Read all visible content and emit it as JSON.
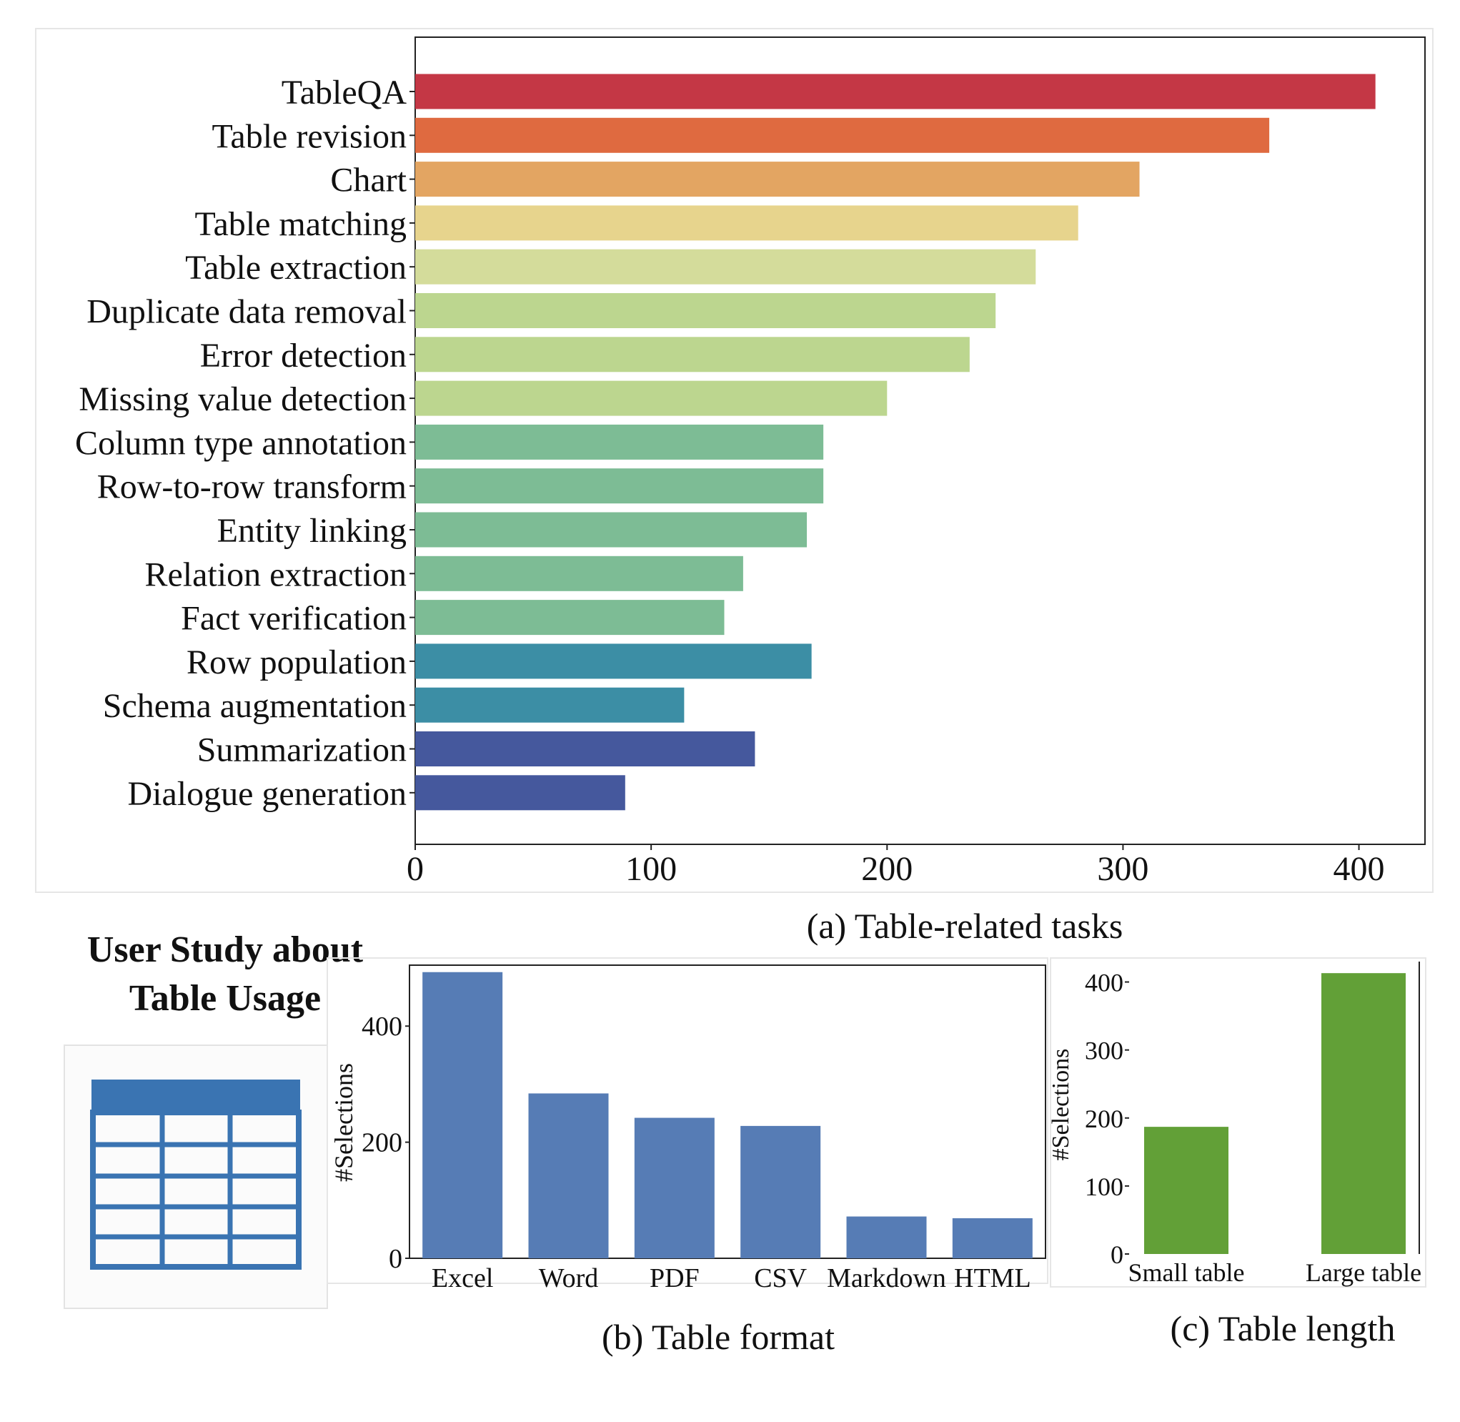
{
  "user_study": {
    "title_line1": "User Study about",
    "title_line2": "Table Usage",
    "icon": "table-grid-icon"
  },
  "chart_data": [
    {
      "id": "a",
      "type": "bar",
      "orientation": "horizontal",
      "caption": "(a) Table-related tasks",
      "xlabel": "",
      "ylabel": "",
      "xlim": [
        0,
        428
      ],
      "xticks": [
        0,
        100,
        200,
        300,
        400
      ],
      "grid": false,
      "categories": [
        "TableQA",
        "Table revision",
        "Chart",
        "Table matching",
        "Table extraction",
        "Duplicate data removal",
        "Error detection",
        "Missing value detection",
        "Column type annotation",
        "Row-to-row transform",
        "Entity linking",
        "Relation extraction",
        "Fact verification",
        "Row population",
        "Schema augmentation",
        "Summarization",
        "Dialogue generation"
      ],
      "values": [
        407,
        362,
        307,
        281,
        263,
        246,
        235,
        200,
        173,
        173,
        166,
        139,
        131,
        168,
        114,
        144,
        89
      ],
      "colors": [
        "#c43745",
        "#df6a40",
        "#e3a562",
        "#e7d48d",
        "#d4dc9b",
        "#bcd68f",
        "#bcd68f",
        "#bcd68f",
        "#7dbc95",
        "#7dbc95",
        "#7dbc95",
        "#7dbc95",
        "#7dbc95",
        "#3c8ea5",
        "#3c8ea5",
        "#45589d",
        "#45589d"
      ]
    },
    {
      "id": "b",
      "type": "bar",
      "orientation": "vertical",
      "caption": "(b) Table format",
      "xlabel": "",
      "ylabel": "#Selections",
      "ylim": [
        0,
        505
      ],
      "yticks": [
        0,
        200,
        400
      ],
      "grid": false,
      "categories": [
        "Excel",
        "Word",
        "PDF",
        "CSV",
        "Markdown",
        "HTML"
      ],
      "values": [
        493,
        284,
        242,
        228,
        72,
        69
      ],
      "color": "#567cb5"
    },
    {
      "id": "c",
      "type": "bar",
      "orientation": "vertical",
      "caption": "(c) Table length",
      "xlabel": "",
      "ylabel": "#Selections",
      "ylim": [
        0,
        430
      ],
      "yticks": [
        0,
        100,
        200,
        300,
        400
      ],
      "grid": false,
      "categories": [
        "Small table",
        "Large table"
      ],
      "values": [
        187,
        413
      ],
      "color": "#62a037"
    }
  ]
}
